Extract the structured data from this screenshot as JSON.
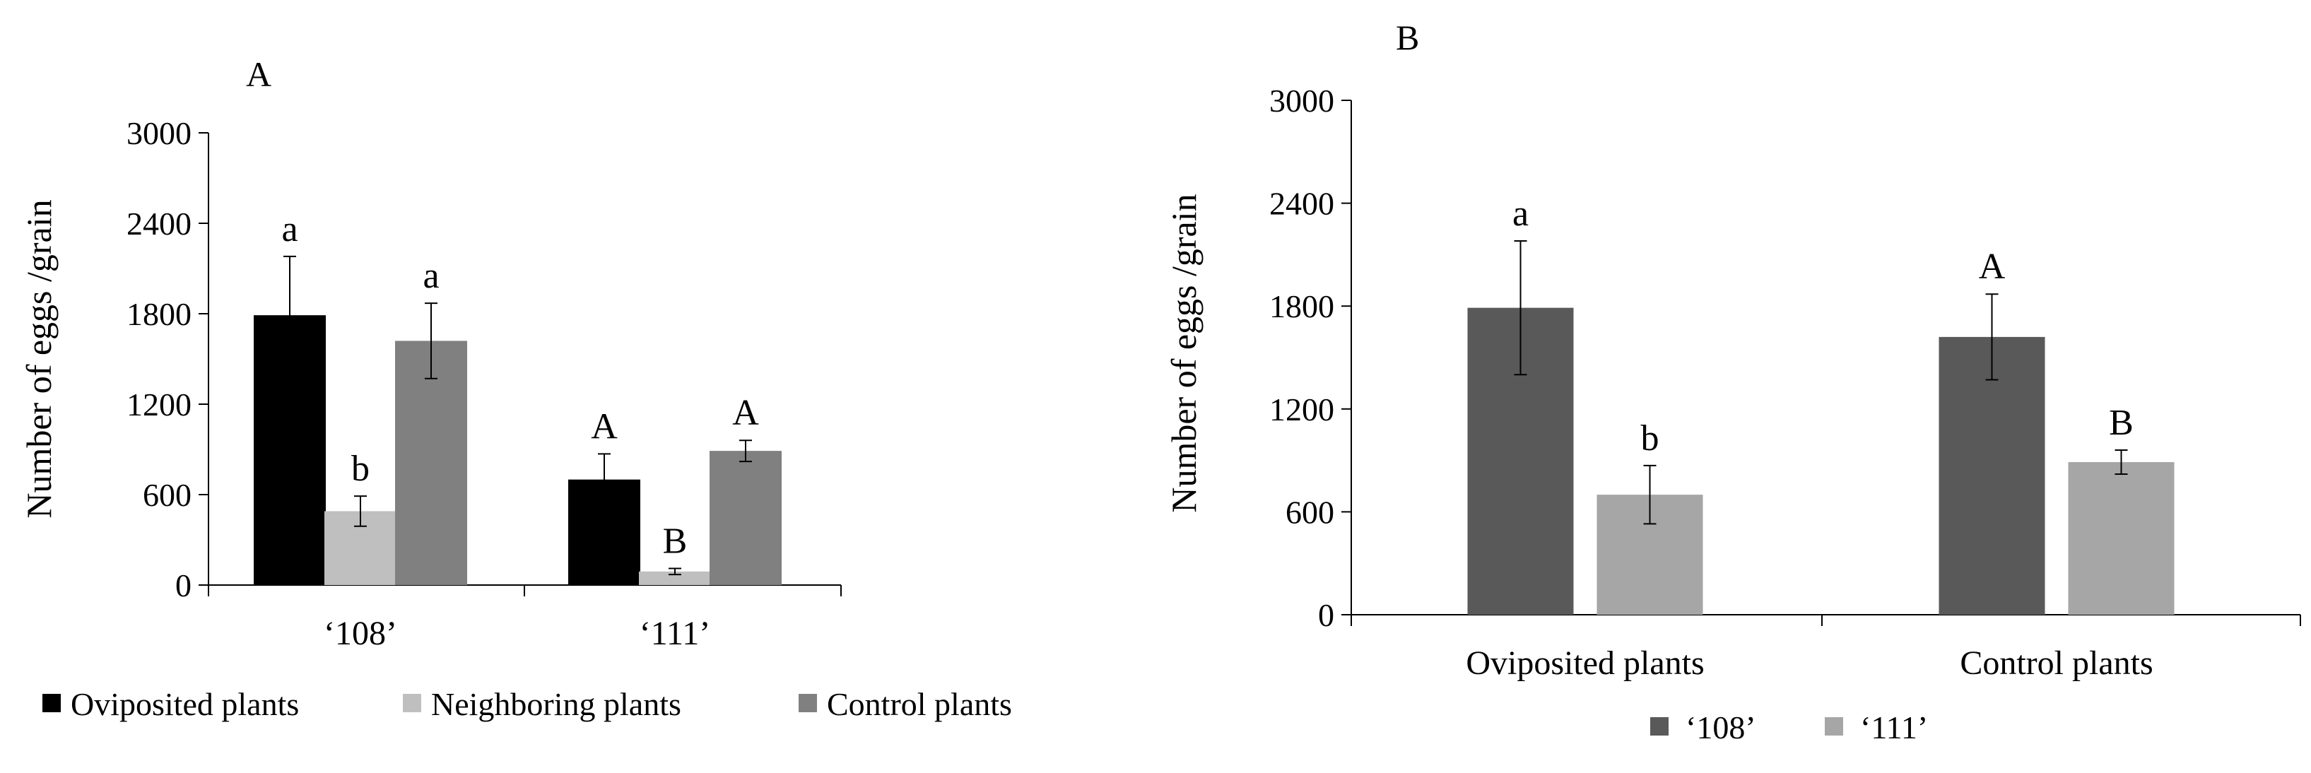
{
  "chart_data": [
    {
      "panel_label": "A",
      "type": "bar",
      "ylabel": "Number of eggs /grain",
      "ylim": [
        0,
        3000
      ],
      "yticks": [
        0,
        600,
        1200,
        1800,
        2400,
        3000
      ],
      "categories": [
        "‘108’",
        "‘111’"
      ],
      "series": [
        {
          "name": "Oviposited plants",
          "color": "#000000",
          "values": [
            1790,
            700
          ],
          "errors": [
            390,
            170
          ],
          "letters": [
            "a",
            "A"
          ]
        },
        {
          "name": "Neighboring plants",
          "color": "#bfbfbf",
          "values": [
            490,
            90
          ],
          "errors": [
            100,
            20
          ],
          "letters": [
            "b",
            "B"
          ]
        },
        {
          "name": "Control plants",
          "color": "#808080",
          "values": [
            1620,
            890
          ],
          "errors": [
            250,
            70
          ],
          "letters": [
            "a",
            "A"
          ]
        }
      ],
      "legend": "bottom"
    },
    {
      "panel_label": "B",
      "type": "bar",
      "ylabel": "Number of eggs /grain",
      "ylim": [
        0,
        3000
      ],
      "yticks": [
        0,
        600,
        1200,
        1800,
        2400,
        3000
      ],
      "categories": [
        "Oviposited plants",
        "Control plants"
      ],
      "series": [
        {
          "name": "‘108’",
          "color": "#595959",
          "values": [
            1790,
            1620
          ],
          "errors": [
            390,
            250
          ],
          "letters": [
            "a",
            "A"
          ]
        },
        {
          "name": "‘111’",
          "color": "#a6a6a6",
          "values": [
            700,
            890
          ],
          "errors": [
            170,
            70
          ],
          "letters": [
            "b",
            "B"
          ]
        }
      ],
      "legend": "bottom"
    }
  ]
}
